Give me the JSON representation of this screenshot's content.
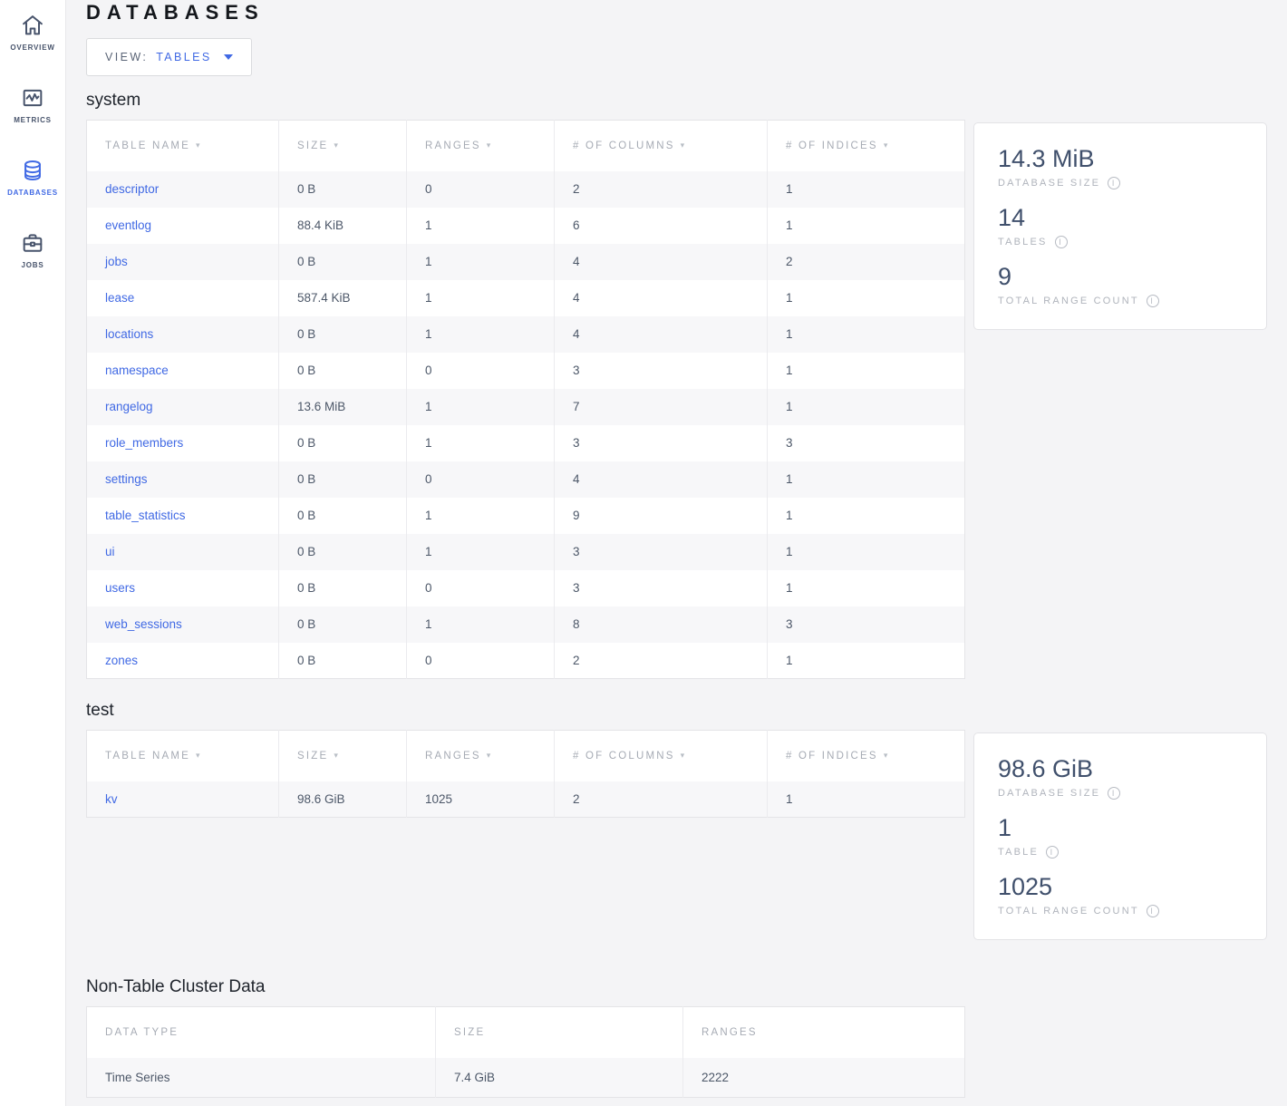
{
  "page_title": "DATABASES",
  "view_selector": {
    "label": "VIEW:",
    "value": "TABLES"
  },
  "sidebar": {
    "items": [
      {
        "label": "OVERVIEW",
        "icon": "home-icon",
        "active": false
      },
      {
        "label": "METRICS",
        "icon": "metrics-icon",
        "active": false
      },
      {
        "label": "DATABASES",
        "icon": "databases-icon",
        "active": true
      },
      {
        "label": "JOBS",
        "icon": "jobs-icon",
        "active": false
      }
    ]
  },
  "databases": [
    {
      "name": "system",
      "columns": [
        "TABLE NAME",
        "SIZE",
        "RANGES",
        "# OF COLUMNS",
        "# OF INDICES"
      ],
      "rows": [
        {
          "table_name": "descriptor",
          "size": "0 B",
          "ranges": "0",
          "columns": "2",
          "indices": "1"
        },
        {
          "table_name": "eventlog",
          "size": "88.4 KiB",
          "ranges": "1",
          "columns": "6",
          "indices": "1"
        },
        {
          "table_name": "jobs",
          "size": "0 B",
          "ranges": "1",
          "columns": "4",
          "indices": "2"
        },
        {
          "table_name": "lease",
          "size": "587.4 KiB",
          "ranges": "1",
          "columns": "4",
          "indices": "1"
        },
        {
          "table_name": "locations",
          "size": "0 B",
          "ranges": "1",
          "columns": "4",
          "indices": "1"
        },
        {
          "table_name": "namespace",
          "size": "0 B",
          "ranges": "0",
          "columns": "3",
          "indices": "1"
        },
        {
          "table_name": "rangelog",
          "size": "13.6 MiB",
          "ranges": "1",
          "columns": "7",
          "indices": "1"
        },
        {
          "table_name": "role_members",
          "size": "0 B",
          "ranges": "1",
          "columns": "3",
          "indices": "3"
        },
        {
          "table_name": "settings",
          "size": "0 B",
          "ranges": "0",
          "columns": "4",
          "indices": "1"
        },
        {
          "table_name": "table_statistics",
          "size": "0 B",
          "ranges": "1",
          "columns": "9",
          "indices": "1"
        },
        {
          "table_name": "ui",
          "size": "0 B",
          "ranges": "1",
          "columns": "3",
          "indices": "1"
        },
        {
          "table_name": "users",
          "size": "0 B",
          "ranges": "0",
          "columns": "3",
          "indices": "1"
        },
        {
          "table_name": "web_sessions",
          "size": "0 B",
          "ranges": "1",
          "columns": "8",
          "indices": "3"
        },
        {
          "table_name": "zones",
          "size": "0 B",
          "ranges": "0",
          "columns": "2",
          "indices": "1"
        }
      ],
      "summary": [
        {
          "value": "14.3 MiB",
          "label": "DATABASE SIZE"
        },
        {
          "value": "14",
          "label": "TABLES"
        },
        {
          "value": "9",
          "label": "TOTAL RANGE COUNT"
        }
      ]
    },
    {
      "name": "test",
      "columns": [
        "TABLE NAME",
        "SIZE",
        "RANGES",
        "# OF COLUMNS",
        "# OF INDICES"
      ],
      "rows": [
        {
          "table_name": "kv",
          "size": "98.6 GiB",
          "ranges": "1025",
          "columns": "2",
          "indices": "1"
        }
      ],
      "summary": [
        {
          "value": "98.6 GiB",
          "label": "DATABASE SIZE"
        },
        {
          "value": "1",
          "label": "TABLE"
        },
        {
          "value": "1025",
          "label": "TOTAL RANGE COUNT"
        }
      ]
    }
  ],
  "non_table": {
    "heading": "Non-Table Cluster Data",
    "columns": [
      "DATA TYPE",
      "SIZE",
      "RANGES"
    ],
    "rows": [
      {
        "data_type": "Time Series",
        "size": "7.4 GiB",
        "ranges": "2222"
      }
    ]
  },
  "colors": {
    "accent_blue": "#4069e4",
    "page_background": "#f4f4f6",
    "row_stripe": "#f7f7f9"
  }
}
